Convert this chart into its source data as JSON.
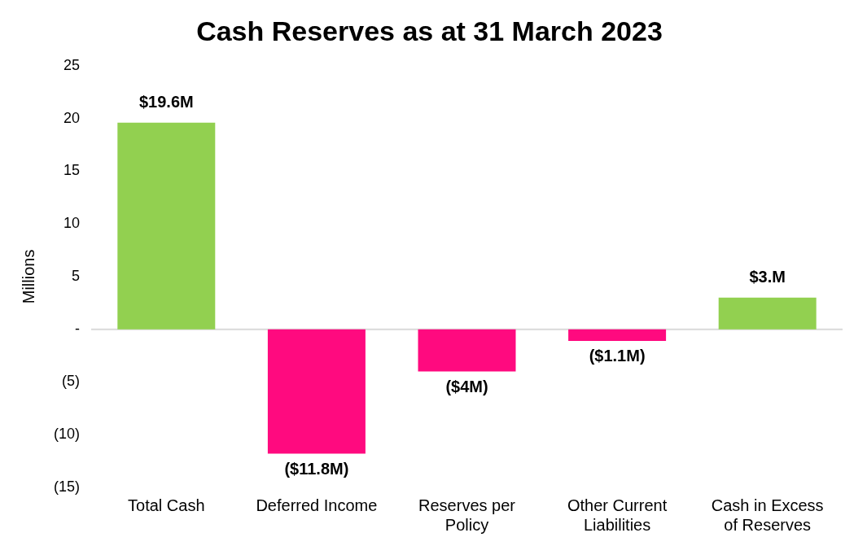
{
  "chart_data": {
    "type": "bar",
    "title": "Cash Reserves as at 31 March 2023",
    "ylabel": "Millions",
    "categories": [
      "Total Cash",
      "Deferred Income",
      "Reserves per Policy",
      "Other Current Liabilities",
      "Cash in Excess of Reserves"
    ],
    "values": [
      19.6,
      -11.8,
      -4,
      -1.1,
      3
    ],
    "colors": [
      "#92d050",
      "#ff0a7f",
      "#ff0a7f",
      "#ff0a7f",
      "#92d050"
    ],
    "value_labels": [
      "$19.6M",
      "($11.8M)",
      "($4M)",
      "($1.1M)",
      "$3.M"
    ],
    "ylim": [
      -15,
      25
    ],
    "yticks": [
      {
        "value": -15,
        "label": "(15)"
      },
      {
        "value": -10,
        "label": "(10)"
      },
      {
        "value": -5,
        "label": "(5)"
      },
      {
        "value": 0,
        "label": "-"
      },
      5,
      10,
      15,
      20,
      25
    ],
    "ref_lines": [
      {
        "axis": "y",
        "value": 0,
        "color": "#d9d9d9"
      }
    ],
    "grid": false,
    "legend": false
  }
}
